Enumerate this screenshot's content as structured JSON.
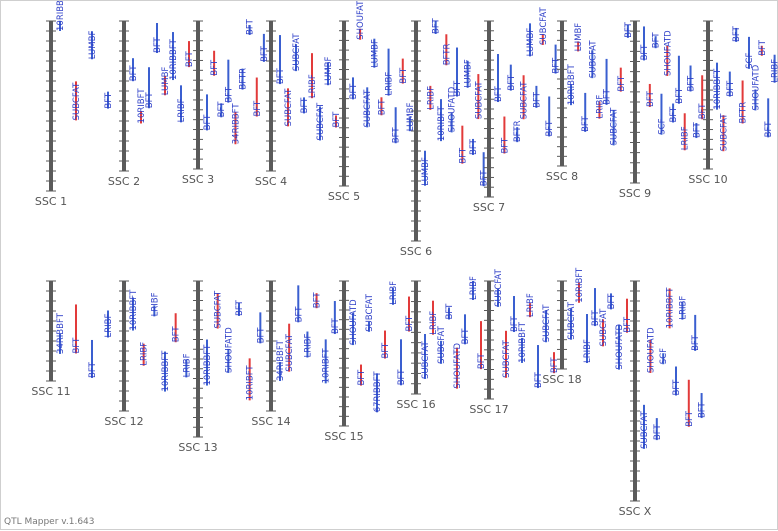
{
  "app": {
    "footer": "QTL Mapper v.1.643"
  },
  "colors": {
    "chromosome": "#5a5a5a",
    "tick": "#5a5a5a",
    "qtl_blue": "#3a5fd0",
    "qtl_red": "#e23a3a",
    "trait_text": "#2e3fc8"
  },
  "chromosomes": [
    {
      "label": "SSC 1",
      "traits": [
        "10RIBBFT",
        "SUBCFAT",
        "LUMBF",
        "BFT"
      ]
    },
    {
      "label": "SSC 2",
      "traits": [
        "BFT",
        "10RIBFT",
        "BFT",
        "BFT",
        "LUMBF",
        "10RIBBFT",
        "LRIBF",
        "BFT"
      ]
    },
    {
      "label": "SSC 3",
      "traits": [
        "BFT",
        "BFT",
        "BFT",
        "BFT",
        "34RIBBFT",
        "BFTR",
        "BFT",
        "BFT",
        "BFT"
      ]
    },
    {
      "label": "SSC 4",
      "traits": [
        "BFT",
        "SUBCFAT",
        "SUBCFAT",
        "BFT",
        "LRIBF",
        "SUBCFAT",
        "LUMBF",
        "BFT"
      ]
    },
    {
      "label": "SSC 5",
      "traits": [
        "BFT",
        "SHOUFATD",
        "SUBCFAT",
        "LUMBF",
        "BFT",
        "LRIBF",
        "BFT",
        "BFT",
        "LUMBF"
      ]
    },
    {
      "label": "SSC 6",
      "traits": [
        "LUMBF",
        "LRIBF",
        "BFT",
        "10RIBFT",
        "BFTR",
        "SHOUFATD",
        "BFT",
        "BFT",
        "LUMBF",
        "BFT",
        "SUBCFAT",
        "BFT"
      ]
    },
    {
      "label": "SSC 7",
      "traits": [
        "BFT",
        "BFT",
        "BFT",
        "BFTR",
        "SUBCFAT",
        "LUMBF",
        "BFT",
        "SUBCFAT",
        "BFT",
        "BFT"
      ]
    },
    {
      "label": "SSC 8",
      "traits": [
        "10RIBBFT",
        "LUMBF",
        "BFT",
        "SUBCFAT",
        "LRIBF",
        "BFT",
        "SUBCFAT",
        "BFT",
        "BFT"
      ]
    },
    {
      "label": "SSC 9",
      "traits": [
        "BFT",
        "BFT",
        "BFT",
        "SCF",
        "SHOUFATD",
        "BFT",
        "BFT",
        "LRIBF",
        "BFT",
        "BFT",
        "BFT"
      ]
    },
    {
      "label": "SSC 10",
      "traits": [
        "10RIBBFT",
        "SUBCFAT",
        "BFT",
        "BFT",
        "BFTR",
        "SCF",
        "SHOUFATD",
        "BFT",
        "BFT",
        "LRIBF"
      ]
    },
    {
      "label": "SSC 11",
      "traits": [
        "34RIBBFT",
        "BFT",
        "BFT",
        "LRIBF"
      ]
    },
    {
      "label": "SSC 12",
      "traits": [
        "10RIBBFT",
        "LRIBF",
        "LRIBF",
        "10RIBBFT",
        "BFT",
        "LRIBF"
      ]
    },
    {
      "label": "SSC 13",
      "traits": [
        "10RIBBFT",
        "SUBCFAT",
        "SHOUFATD",
        "BFT",
        "10RIBFT",
        "BFT"
      ]
    },
    {
      "label": "SSC 14",
      "traits": [
        "34RIBBFT",
        "SUBCFAT",
        "BFT",
        "LRIBF",
        "BFT",
        "10RIBFT",
        "BFT"
      ]
    },
    {
      "label": "SSC 15",
      "traits": [
        "SHOUFATD",
        "BFT",
        "SUBCFAT",
        "67RIBBFT",
        "BFT",
        "LRIBF",
        "BFT",
        "BFT"
      ]
    },
    {
      "label": "SSC 16",
      "traits": [
        "SUBCFAT",
        "LRIBF",
        "SUBCFAT",
        "BFT",
        "SHOUFATD",
        "BFT",
        "LRIBF",
        "BFT"
      ]
    },
    {
      "label": "SSC 17",
      "traits": [
        "SUBCFAT",
        "SUBCFAT",
        "BFT",
        "10RIBBFT",
        "LRIBF",
        "BFT",
        "SUBCFAT",
        "BFT"
      ]
    },
    {
      "label": "SSC 18",
      "traits": [
        "SUBCFAT",
        "10RIBFT",
        "LRIBF",
        "BFT",
        "SUBCFAT",
        "BFT",
        "SHOUFATD",
        "BFT"
      ]
    },
    {
      "label": "SSC X",
      "traits": [
        "SUBCFAT",
        "SHOUFATD",
        "BFT",
        "SCF",
        "10RIBBFT",
        "BFT",
        "LRIBF",
        "BFT",
        "BFT",
        "BFT"
      ]
    }
  ]
}
